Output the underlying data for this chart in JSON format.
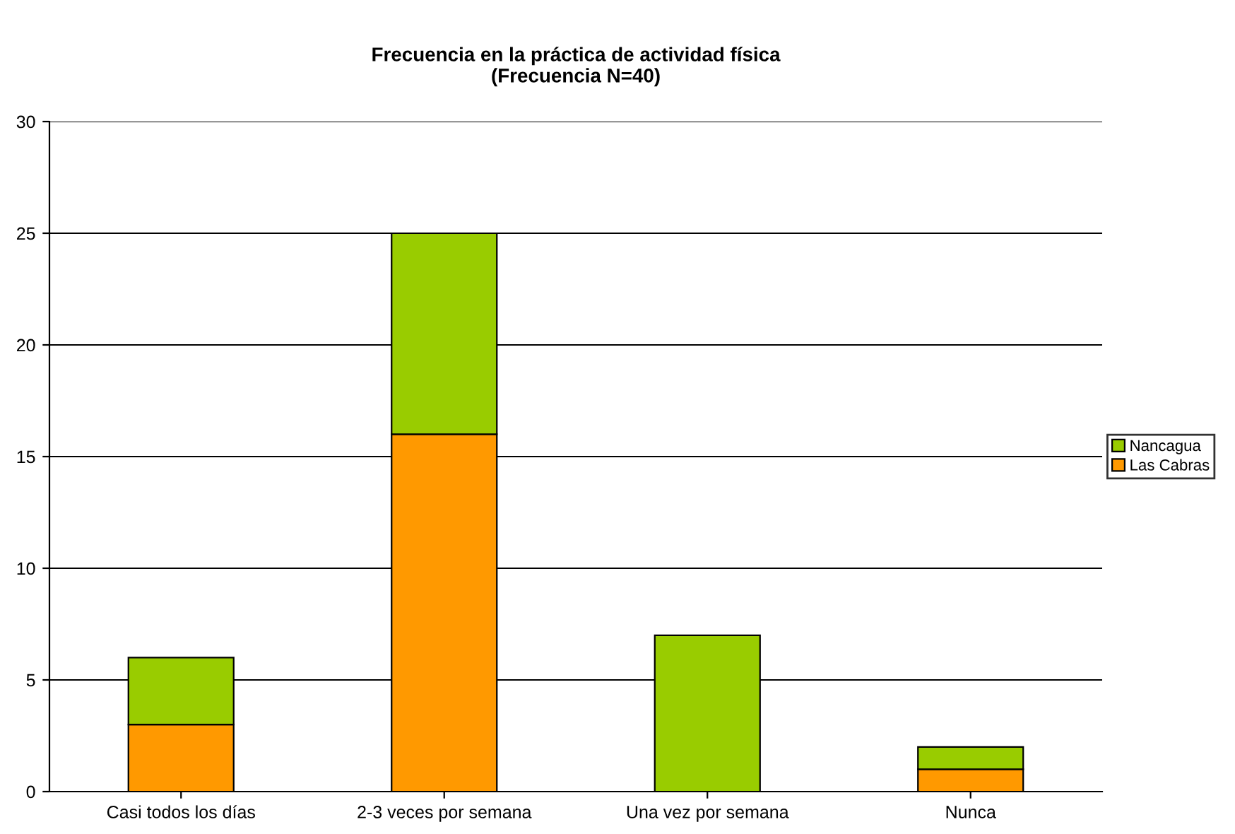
{
  "chart_data": {
    "type": "bar",
    "title": "Frecuencia en la práctica de actividad física\n(Frecuencia N=40)",
    "categories": [
      "Casi todos los días",
      "2-3 veces por semana",
      "Una vez por semana",
      "Nunca"
    ],
    "series": [
      {
        "name": "Las Cabras",
        "color": "#ff9900",
        "values": [
          3,
          16,
          0,
          1
        ]
      },
      {
        "name": "Nancagua",
        "color": "#99cc00",
        "values": [
          3,
          9,
          7,
          1
        ]
      }
    ],
    "stacked": true,
    "ylim": [
      0,
      30
    ],
    "yticks": [
      0,
      5,
      10,
      15,
      20,
      25,
      30
    ],
    "grid": "y",
    "legend": "right"
  }
}
